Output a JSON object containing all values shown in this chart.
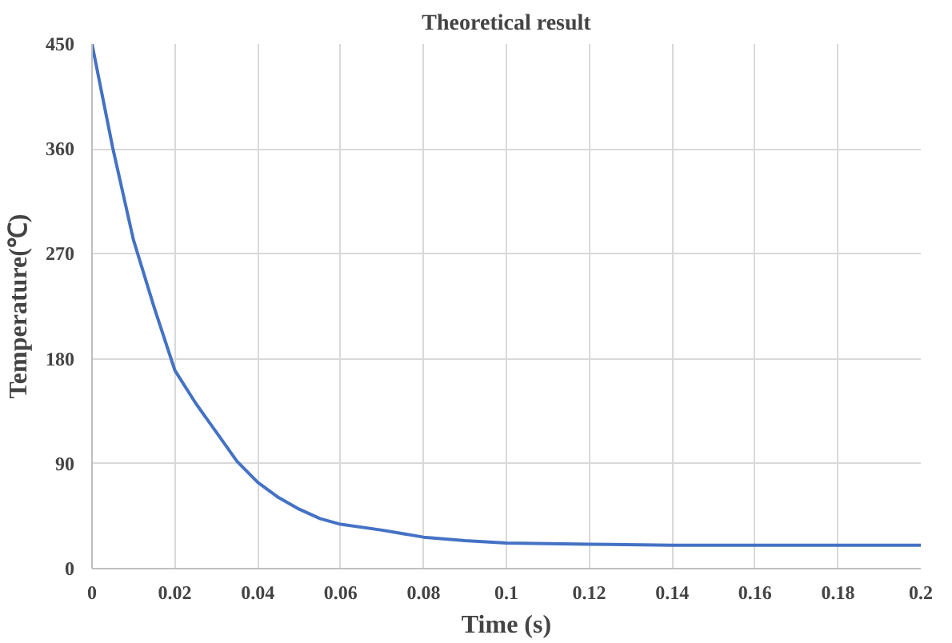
{
  "chart_data": {
    "type": "line",
    "title": "Theoretical result",
    "xlabel": "Time (s)",
    "ylabel": "Temperature(℃)",
    "x": [
      0,
      0.005,
      0.01,
      0.015,
      0.02,
      0.025,
      0.03,
      0.035,
      0.04,
      0.045,
      0.05,
      0.055,
      0.06,
      0.07,
      0.08,
      0.09,
      0.1,
      0.12,
      0.14,
      0.16,
      0.18,
      0.2
    ],
    "series": [
      {
        "color": "#4472c4",
        "values": [
          450,
          361,
          282,
          224,
          170,
          142,
          117,
          92,
          74,
          61,
          51,
          43,
          38,
          33,
          27,
          24,
          22,
          21,
          20,
          20,
          20,
          20
        ]
      }
    ],
    "xlim": [
      0,
      0.2
    ],
    "xticks": [
      0,
      0.02,
      0.04,
      0.06,
      0.08,
      0.1,
      0.12,
      0.14,
      0.16,
      0.18,
      0.2
    ],
    "ylim": [
      0,
      450
    ],
    "yticks": [
      0,
      90,
      180,
      270,
      360,
      450
    ],
    "grid": true,
    "marker": "none",
    "line_style": "solid"
  }
}
